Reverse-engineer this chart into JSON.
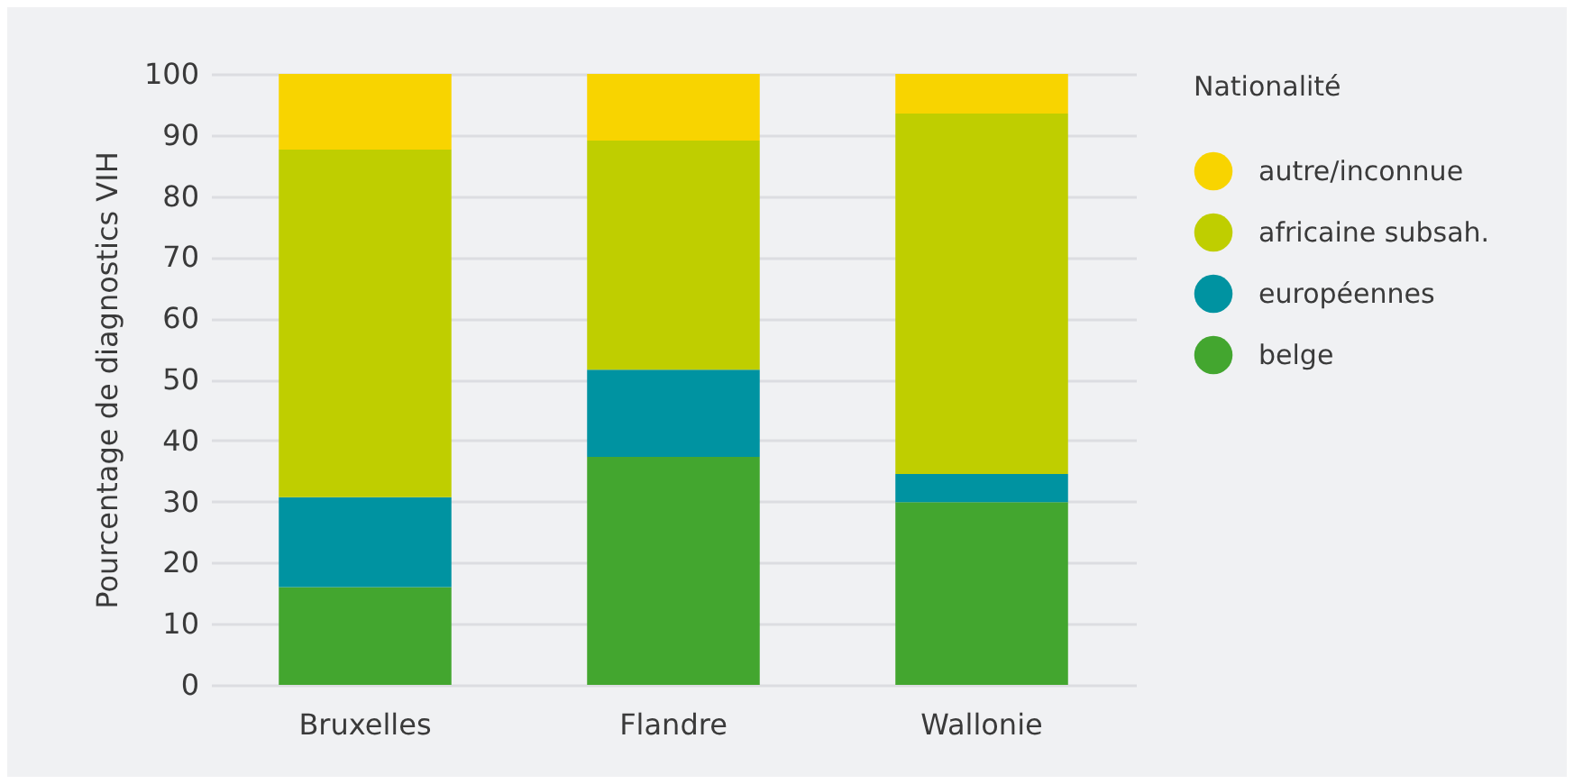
{
  "chart_data": {
    "type": "bar",
    "stacked": true,
    "ylabel": "Pourcentage de diagnostics VIH",
    "legend_title": "Nationalité",
    "categories": [
      "Bruxelles",
      "Flandre",
      "Wallonie"
    ],
    "series": [
      {
        "name": "belge",
        "color": "#43a62f",
        "values": [
          16,
          37.3,
          29.9
        ]
      },
      {
        "name": "européennes",
        "color": "#0093a1",
        "values": [
          14.7,
          14.3,
          4.6
        ]
      },
      {
        "name": "africaine subsah.",
        "color": "#bfce00",
        "values": [
          56.9,
          37.5,
          59
        ]
      },
      {
        "name": "autre/inconnue",
        "color": "#f8d400",
        "values": [
          12.4,
          10.9,
          6.5
        ]
      }
    ],
    "ylim": [
      0,
      100
    ],
    "yticks": [
      0,
      10,
      20,
      30,
      40,
      50,
      60,
      70,
      80,
      90,
      100
    ],
    "grid": "y",
    "legend": "right"
  }
}
